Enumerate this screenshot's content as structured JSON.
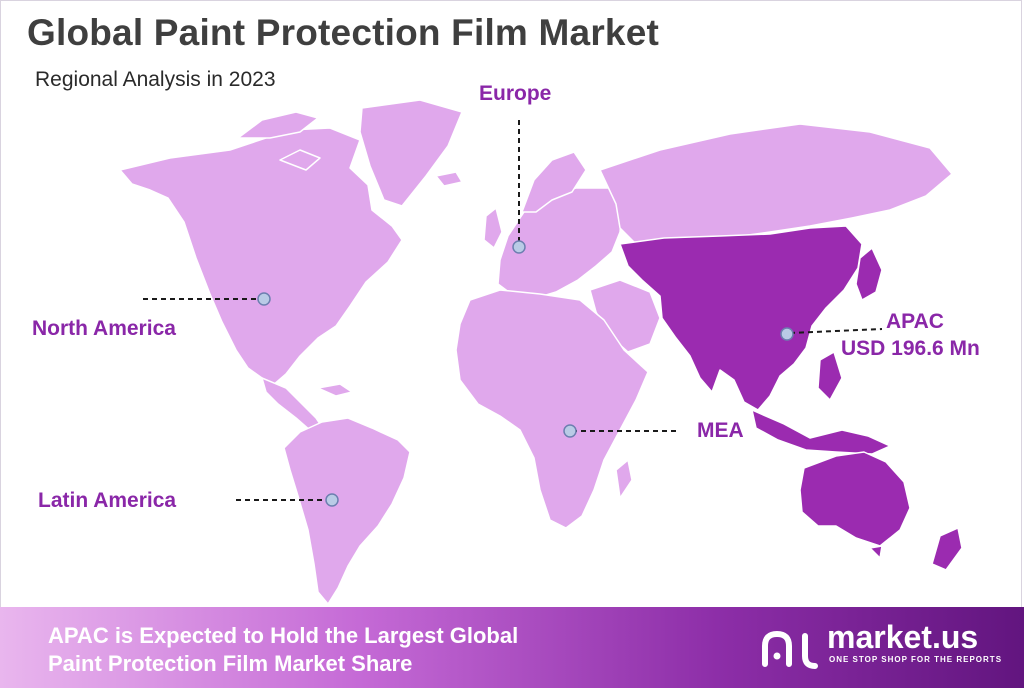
{
  "header": {
    "title": "Global Paint Protection Film Market",
    "subtitle": "Regional Analysis in 2023"
  },
  "regions": {
    "europe": "Europe",
    "north_america": "North America",
    "apac": "APAC",
    "apac_value": "USD 196.6 Mn",
    "mea": "MEA",
    "latin_america": "Latin America"
  },
  "highlighted_region": "APAC",
  "colors": {
    "land_light": "#e0a8ec",
    "land_highlight": "#9b2bb0",
    "label": "#8a27a8",
    "marker": "#b9cbe6"
  },
  "footer": {
    "line1": "APAC is Expected to Hold the Largest Global",
    "line2": "Paint Protection Film Market Share"
  },
  "logo": {
    "name": "market.us",
    "tagline": "ONE STOP SHOP FOR THE REPORTS"
  }
}
